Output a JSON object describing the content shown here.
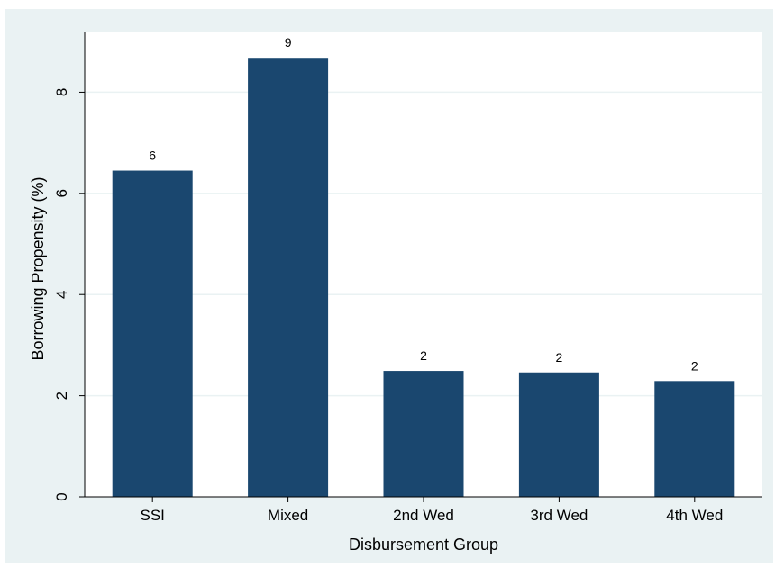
{
  "chart_data": {
    "type": "bar",
    "categories": [
      "SSI",
      "Mixed",
      "2nd Wed",
      "3rd Wed",
      "4th Wed"
    ],
    "values": [
      6.45,
      8.68,
      2.49,
      2.46,
      2.29
    ],
    "data_labels": [
      "6",
      "9",
      "2",
      "2",
      "2"
    ],
    "xlabel": "Disbursement Group",
    "ylabel": "Borrowing Propensity (%)",
    "ylim": [
      0,
      9.2
    ],
    "yticks": [
      0,
      2,
      4,
      6,
      8
    ],
    "ytick_labels": [
      "0",
      "2",
      "4",
      "6",
      "8"
    ],
    "grid": true,
    "colors": {
      "bar": "#1a476f",
      "plot_background": "#ffffff",
      "outer_background": "#eaf2f3",
      "gridline": "#eaf2f3"
    }
  }
}
